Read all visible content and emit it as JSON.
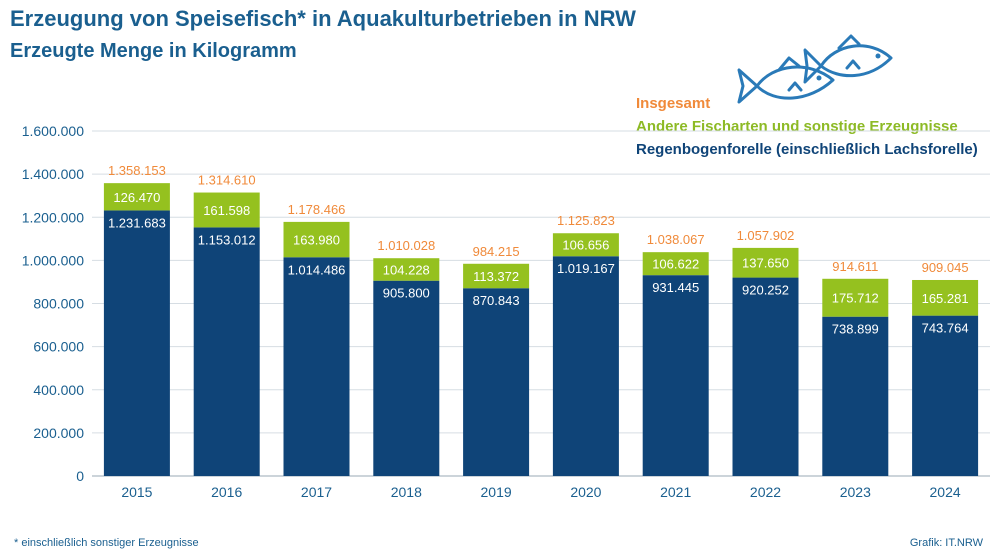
{
  "header": {
    "title": "Erzeugung von Speisefisch* in Aquakulturbetrieben in NRW",
    "subtitle": "Erzeugte Menge in Kilogramm"
  },
  "legend": {
    "total": "Insgesamt",
    "other": "Andere Fischarten und sonstige Erzeugnisse",
    "trout": "Regenbogenforelle (einschließlich Lachsforelle)"
  },
  "footer": {
    "footnote": "*  einschließlich sonstiger Erzeugnisse",
    "source": "Grafik: IT.NRW"
  },
  "icon": "fish-icon",
  "colors": {
    "trout": "#0f4478",
    "other": "#95c11f",
    "total_label": "#f08a3a",
    "axis_text": "#1a5f8f"
  },
  "chart_data": {
    "type": "bar",
    "stacked": true,
    "categories": [
      "2015",
      "2016",
      "2017",
      "2018",
      "2019",
      "2020",
      "2021",
      "2022",
      "2023",
      "2024"
    ],
    "series": [
      {
        "name": "Regenbogenforelle (einschließlich Lachsforelle)",
        "values": [
          1231683,
          1153012,
          1014486,
          905800,
          870843,
          1019167,
          931445,
          920252,
          738899,
          743764
        ],
        "labels": [
          "1.231.683",
          "1.153.012",
          "1.014.486",
          "905.800",
          "870.843",
          "1.019.167",
          "931.445",
          "920.252",
          "738.899",
          "743.764"
        ]
      },
      {
        "name": "Andere Fischarten und sonstige Erzeugnisse",
        "values": [
          126470,
          161598,
          163980,
          104228,
          113372,
          106656,
          106622,
          137650,
          175712,
          165281
        ],
        "labels": [
          "126.470",
          "161.598",
          "163.980",
          "104.228",
          "113.372",
          "106.656",
          "106.622",
          "137.650",
          "175.712",
          "165.281"
        ]
      }
    ],
    "totals": {
      "name": "Insgesamt",
      "values": [
        1358153,
        1314610,
        1178466,
        1010028,
        984215,
        1125823,
        1038067,
        1057902,
        914611,
        909045
      ],
      "labels": [
        "1.358.153",
        "1.314.610",
        "1.178.466",
        "1.010.028",
        "984.215",
        "1.125.823",
        "1.038.067",
        "1.057.902",
        "914.611",
        "909.045"
      ]
    },
    "yticks": [
      0,
      200000,
      400000,
      600000,
      800000,
      1000000,
      1200000,
      1400000,
      1600000
    ],
    "ytick_labels": [
      "0",
      "200.000",
      "400.000",
      "600.000",
      "800.000",
      "1.000.000",
      "1.200.000",
      "1.400.000",
      "1.600.000"
    ],
    "ylim": [
      0,
      1600000
    ],
    "grid": true
  }
}
